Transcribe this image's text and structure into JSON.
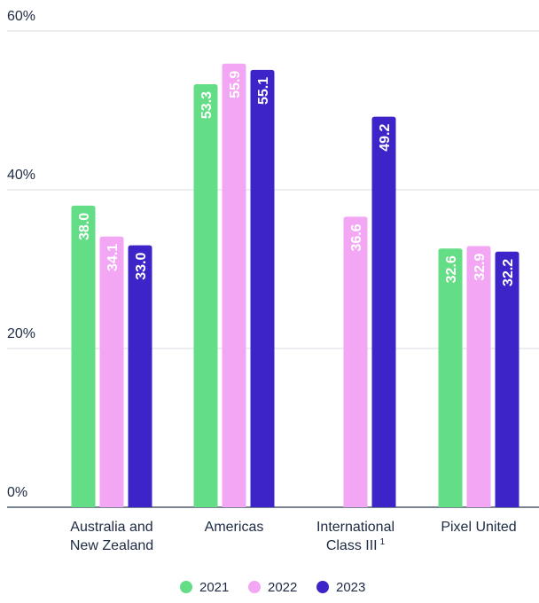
{
  "chart_data": {
    "type": "bar",
    "categories": [
      [
        "Australia and",
        "New Zealand"
      ],
      [
        "Americas"
      ],
      [
        "International",
        "Class III"
      ],
      [
        "Pixel United"
      ]
    ],
    "category_superscripts": [
      "",
      "",
      "1",
      ""
    ],
    "series": [
      {
        "name": "2021",
        "color": "#63dd86",
        "values": [
          38.0,
          53.3,
          null,
          32.6
        ]
      },
      {
        "name": "2022",
        "color": "#f2a6f4",
        "values": [
          34.1,
          55.9,
          36.6,
          32.9
        ]
      },
      {
        "name": "2023",
        "color": "#3d24c9",
        "values": [
          33.0,
          55.1,
          49.2,
          32.2
        ]
      }
    ],
    "ylim": [
      0,
      60
    ],
    "yticks": [
      0,
      20,
      40,
      60
    ],
    "ytick_labels": [
      "0%",
      "20%",
      "40%",
      "60%"
    ],
    "grid": true,
    "legend_position": "bottom-center",
    "title": "",
    "xlabel": "",
    "ylabel": ""
  }
}
